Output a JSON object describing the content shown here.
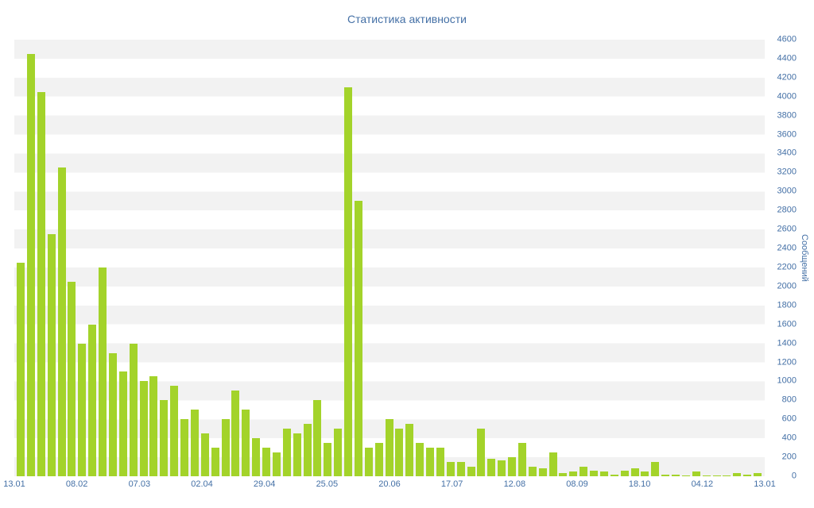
{
  "chart_data": {
    "type": "bar",
    "title": "Статистика активности",
    "ylabel": "Сообщений",
    "xlabel": "",
    "ylim": [
      0,
      4600
    ],
    "y_tick_step": 200,
    "y_ticks": [
      0,
      200,
      400,
      600,
      800,
      1000,
      1200,
      1400,
      1600,
      1800,
      2000,
      2200,
      2400,
      2600,
      2800,
      3000,
      3200,
      3400,
      3600,
      3800,
      4000,
      4200,
      4400,
      4600
    ],
    "x_tick_labels": [
      "13.01",
      "08.02",
      "07.03",
      "02.04",
      "29.04",
      "25.05",
      "20.06",
      "17.07",
      "12.08",
      "08.09",
      "18.10",
      "04.12",
      "13.01"
    ],
    "x_tick_indices": [
      0,
      6,
      12,
      18,
      24,
      30,
      36,
      42,
      48,
      54,
      60,
      66,
      72
    ],
    "values": [
      2250,
      4450,
      4050,
      2550,
      3250,
      2050,
      1400,
      1600,
      2200,
      1300,
      1100,
      1400,
      1000,
      1050,
      800,
      950,
      600,
      700,
      450,
      300,
      600,
      900,
      700,
      400,
      300,
      250,
      500,
      450,
      550,
      800,
      350,
      500,
      4100,
      2900,
      300,
      350,
      600,
      500,
      550,
      350,
      300,
      300,
      150,
      150,
      100,
      500,
      180,
      170,
      200,
      350,
      100,
      80,
      250,
      30,
      50,
      100,
      60,
      50,
      20,
      60,
      80,
      50,
      150,
      20,
      20,
      10,
      50,
      10,
      10,
      10,
      30,
      20,
      30
    ],
    "grid": "horizontal-stripes",
    "legend": "none",
    "colors": {
      "bar": "#a3d32a",
      "text": "#4470a6",
      "stripe": "#f2f2f2",
      "background": "#ffffff"
    }
  }
}
